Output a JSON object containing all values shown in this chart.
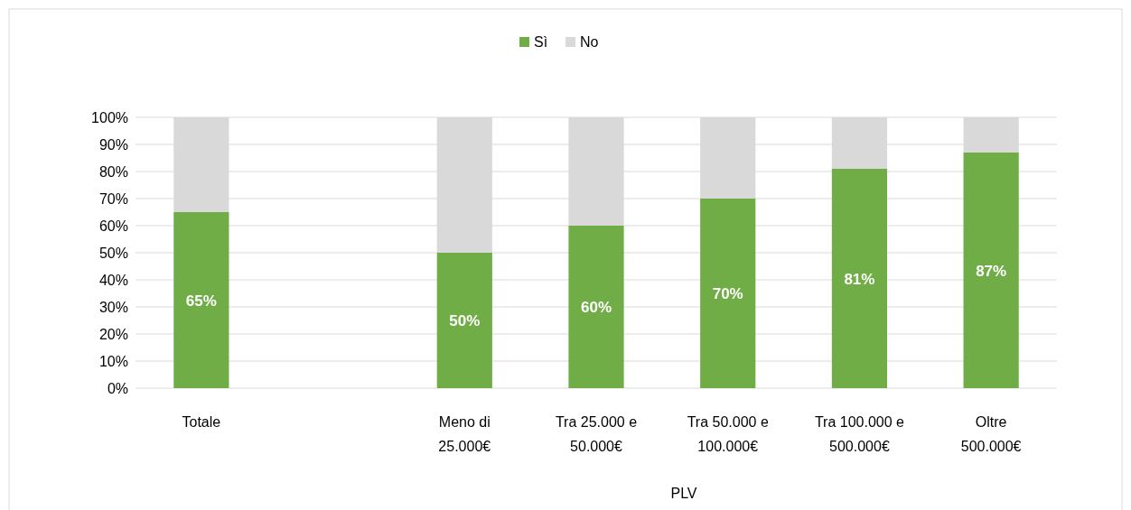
{
  "chart_data": {
    "type": "bar",
    "stacked": true,
    "xlabel": "PLV",
    "categories": [
      "Totale",
      null,
      "Meno di 25.000€",
      "Tra 25.000 e 50.000€",
      "Tra 50.000 e 100.000€",
      "Tra 100.000 e 500.000€",
      "Oltre 500.000€"
    ],
    "series": [
      {
        "name": "Sì",
        "color": "#70ad47",
        "values": [
          65,
          null,
          50,
          60,
          70,
          81,
          87
        ],
        "value_labels": [
          "65%",
          null,
          "50%",
          "60%",
          "70%",
          "81%",
          "87%"
        ]
      },
      {
        "name": "No",
        "color": "#d9d9d9",
        "values": [
          35,
          null,
          50,
          40,
          30,
          19,
          13
        ]
      }
    ],
    "ylim": [
      0,
      100
    ],
    "yticks": [
      {
        "value": 0,
        "label": "0%"
      },
      {
        "value": 10,
        "label": "10%"
      },
      {
        "value": 20,
        "label": "20%"
      },
      {
        "value": 30,
        "label": "30%"
      },
      {
        "value": 40,
        "label": "40%"
      },
      {
        "value": 50,
        "label": "50%"
      },
      {
        "value": 60,
        "label": "60%"
      },
      {
        "value": 70,
        "label": "70%"
      },
      {
        "value": 80,
        "label": "80%"
      },
      {
        "value": 90,
        "label": "90%"
      },
      {
        "value": 100,
        "label": "100%"
      }
    ],
    "grid": "y",
    "legend": "top"
  }
}
